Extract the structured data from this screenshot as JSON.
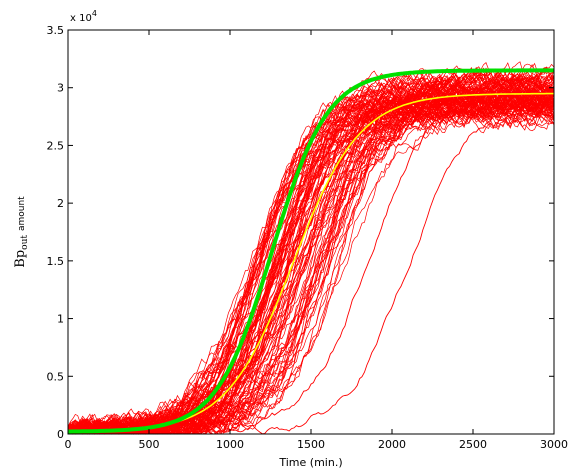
{
  "chart_data": {
    "type": "line",
    "xlabel": "Time (min.)",
    "ylabel": {
      "main": "Bp",
      "sub": "out",
      "suffix": "amount"
    },
    "y_multiplier": {
      "base": "x 10",
      "exponent": "4"
    },
    "xlim": [
      0,
      3000
    ],
    "ylim": [
      0,
      3.5
    ],
    "x_ticks": [
      0,
      500,
      1000,
      1500,
      2000,
      2500,
      3000
    ],
    "y_ticks": [
      0,
      0.5,
      1,
      1.5,
      2,
      2.5,
      3,
      3.5
    ],
    "grid": false,
    "legend": "none",
    "series": [
      {
        "color": "#00e000",
        "role": "deterministic",
        "logistic": {
          "plateau": 3.15,
          "midpoint": 1260,
          "width": 170,
          "base": 0.02
        }
      },
      {
        "color": "#ffff00",
        "role": "mean",
        "logistic": {
          "plateau": 2.95,
          "midpoint": 1390,
          "width": 205,
          "base": 0.02
        }
      },
      {
        "color": "#ff0000",
        "role": "stochastic-runs",
        "count": 110,
        "midpoint_range": [
          1150,
          1700
        ],
        "plateau_range": [
          2.75,
          3.1
        ],
        "outliers": [
          {
            "midpoint": 1850,
            "plateau": 3.0
          },
          {
            "midpoint": 2100,
            "plateau": 2.9
          }
        ]
      }
    ]
  }
}
